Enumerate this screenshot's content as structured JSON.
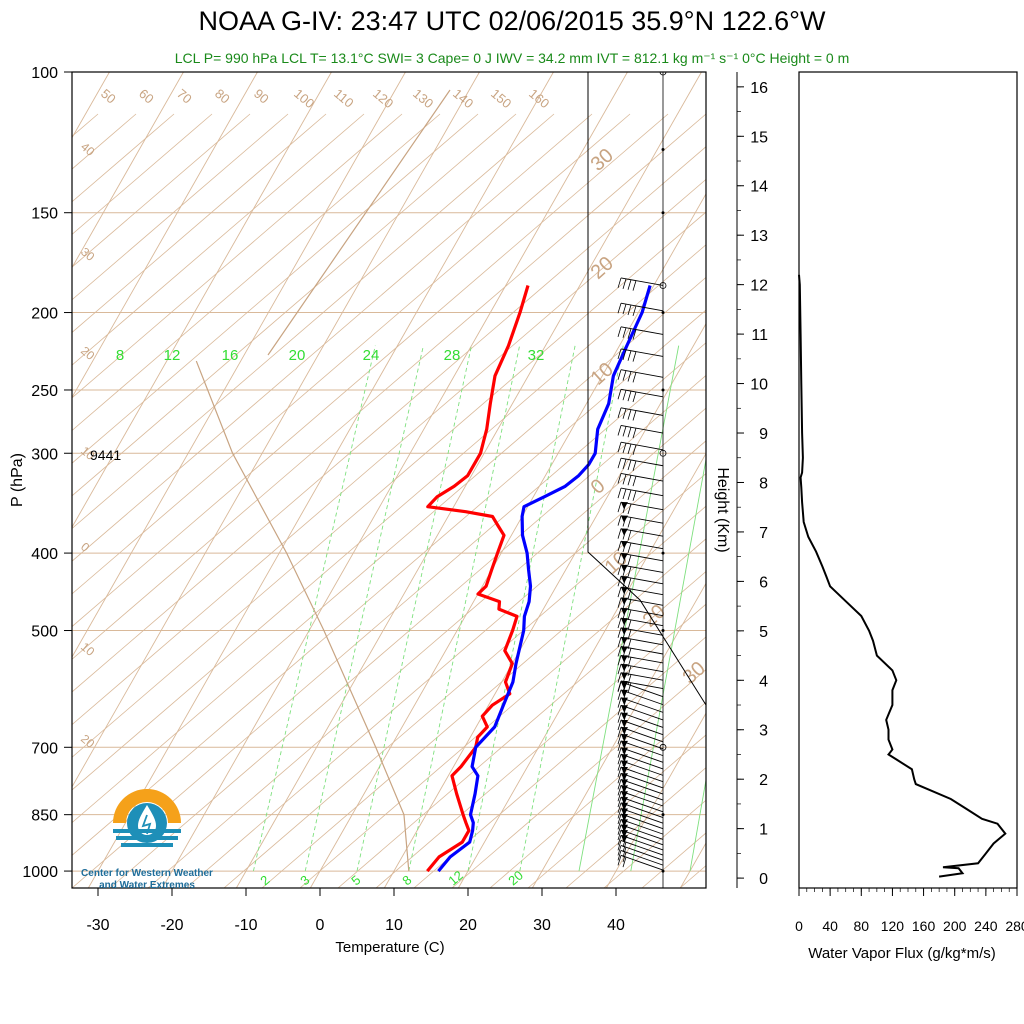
{
  "title": "NOAA G-IV: 23:47 UTC 02/06/2015  35.9°N 122.6°W",
  "subtitle": "LCL P= 990 hPa  LCL T= 13.1°C  SWI= 3  Cape= 0 J  IWV = 34.2 mm  IVT = 812.1 kg m⁻¹ s⁻¹  0°C Height = 0 m",
  "logo": {
    "line1": "Center for Western Weather",
    "line2": "and Water Extremes"
  },
  "colors": {
    "temperature": "#ff0000",
    "dewpoint": "#0000ff",
    "dry_adiabat": "#c8a482",
    "mixing_ratio": "#33dd33",
    "subtitle": "#1a8a1a",
    "logo_orange": "#f5a11a",
    "logo_blue": "#1e8fb8"
  },
  "chart_data": [
    {
      "type": "line",
      "name": "skew-t",
      "xlabel": "Temperature (C)",
      "ylabel": "P (hPa)",
      "x_ticks": [
        "-30",
        "-20",
        "-10",
        "0",
        "10",
        "20",
        "30",
        "40"
      ],
      "p_ticks": [
        "100",
        "150",
        "200",
        "250",
        "300",
        "400",
        "500",
        "700",
        "850",
        "1000"
      ],
      "annotation": "9441",
      "adiabat_labels": [
        "50",
        "60",
        "70",
        "80",
        "90",
        "100",
        "110",
        "120",
        "130",
        "140",
        "150",
        "160",
        "40",
        "30",
        "20",
        "10",
        "0",
        "10",
        "20",
        "30",
        "20",
        "10",
        "0",
        "10",
        "20",
        "30"
      ],
      "mixing_ratio_top_labels": [
        "8",
        "12",
        "16",
        "20",
        "24",
        "28",
        "32"
      ],
      "mixing_ratio_bottom_labels": [
        "2",
        "3",
        "5",
        "8",
        "12",
        "20"
      ],
      "series": [
        {
          "label": "temperature",
          "p": [
            1000,
            960,
            920,
            890,
            870,
            850,
            800,
            760,
            740,
            700,
            680,
            660,
            640,
            620,
            600,
            580,
            550,
            530,
            500,
            480,
            470,
            460,
            450,
            440,
            420,
            400,
            380,
            370,
            360,
            355,
            350,
            340,
            330,
            320,
            300,
            290,
            280,
            260,
            240,
            220,
            200,
            185
          ],
          "t": [
            14.5,
            15.0,
            17.0,
            17.0,
            16.0,
            15.0,
            12.5,
            10.5,
            11.0,
            11.5,
            11.0,
            11.5,
            10.0,
            10.5,
            12.0,
            10.5,
            10.0,
            8.0,
            7.5,
            7.0,
            4.0,
            3.5,
            0.0,
            0.5,
            0.0,
            -0.5,
            -1.0,
            -2.5,
            -4.0,
            -8.0,
            -13.5,
            -13.0,
            -11.5,
            -10.5,
            -10.5,
            -11.0,
            -11.5,
            -13.0,
            -14.5,
            -15.0,
            -16.0,
            -17.0
          ]
        },
        {
          "label": "dewpoint",
          "p": [
            1000,
            960,
            920,
            890,
            870,
            850,
            800,
            760,
            740,
            700,
            660,
            620,
            580,
            550,
            500,
            480,
            460,
            440,
            420,
            400,
            380,
            360,
            350,
            340,
            330,
            320,
            310,
            300,
            280,
            260,
            240,
            220,
            200,
            185
          ],
          "t": [
            16.0,
            16.5,
            18.0,
            17.5,
            17.0,
            16.0,
            15.0,
            14.0,
            12.5,
            11.5,
            12.5,
            12.0,
            11.5,
            10.5,
            9.0,
            8.0,
            7.5,
            6.5,
            5.0,
            3.5,
            1.5,
            0.0,
            -0.5,
            1.5,
            3.5,
            4.5,
            5.0,
            5.0,
            3.5,
            3.0,
            1.5,
            1.0,
            0.5,
            -0.5
          ]
        }
      ],
      "wind_barbs": "speed and direction barbs along right side, 185–1000 hPa",
      "wind_barbs_hidden": true
    },
    {
      "type": "line",
      "name": "water-vapor-flux",
      "xlabel": "Water Vapor Flux (g/kg*m/s)",
      "ylabel": "Height (Km)",
      "x_ticks": [
        "0",
        "40",
        "80",
        "120",
        "160",
        "200",
        "240",
        "280"
      ],
      "xlim": [
        0,
        280
      ],
      "y_ticks": [
        "0",
        "1",
        "2",
        "3",
        "4",
        "5",
        "6",
        "7",
        "8",
        "9",
        "10",
        "11",
        "12",
        "13",
        "14",
        "15",
        "16"
      ],
      "ylim": [
        -0.2,
        16.3
      ],
      "height_km": [
        0.03,
        0.1,
        0.2,
        0.22,
        0.3,
        0.5,
        0.7,
        0.9,
        1.1,
        1.2,
        1.4,
        1.6,
        1.8,
        1.9,
        2.0,
        2.2,
        2.4,
        2.5,
        2.6,
        2.8,
        3.0,
        3.2,
        3.5,
        3.8,
        4.0,
        4.2,
        4.5,
        4.8,
        5.0,
        5.3,
        5.6,
        5.9,
        6.1,
        6.3,
        6.6,
        6.9,
        7.2,
        7.6,
        7.9,
        8.1,
        8.2,
        8.5,
        9.0,
        10.0,
        11.0,
        12.0,
        12.2
      ],
      "flux": [
        180,
        210,
        205,
        185,
        230,
        240,
        250,
        265,
        255,
        235,
        215,
        195,
        165,
        150,
        148,
        145,
        125,
        115,
        120,
        115,
        115,
        112,
        120,
        120,
        125,
        120,
        100,
        95,
        90,
        80,
        60,
        40,
        35,
        30,
        22,
        12,
        6,
        4,
        3,
        2,
        4,
        5,
        4,
        3,
        2,
        1,
        0
      ]
    }
  ]
}
